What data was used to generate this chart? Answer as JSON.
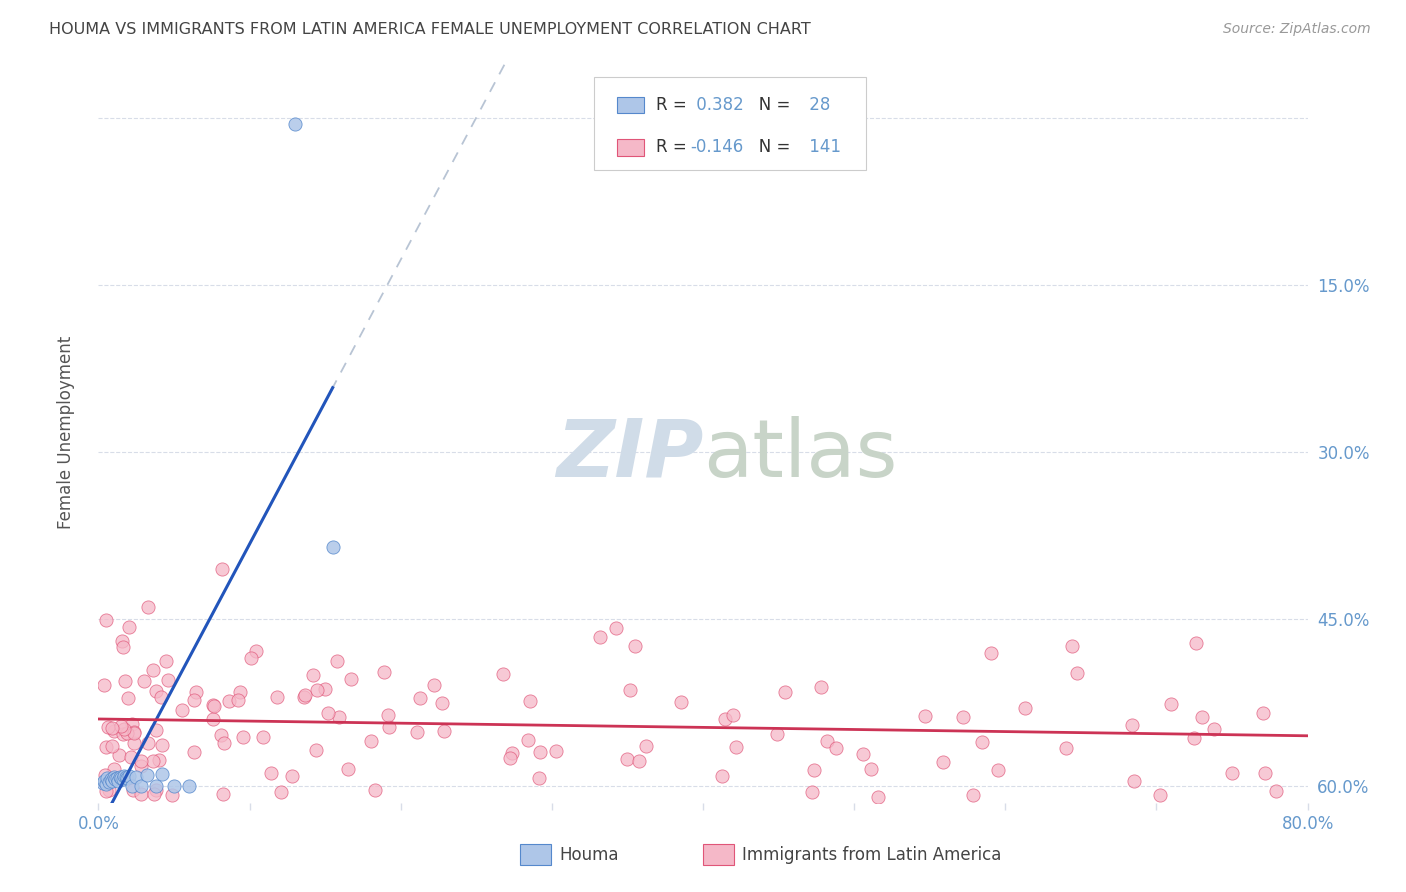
{
  "title": "HOUMA VS IMMIGRANTS FROM LATIN AMERICA FEMALE UNEMPLOYMENT CORRELATION CHART",
  "source": "Source: ZipAtlas.com",
  "ylabel": "Female Unemployment",
  "xlim": [
    0.0,
    0.8
  ],
  "ylim": [
    -0.015,
    0.65
  ],
  "x_tick_pos": [
    0.0,
    0.1,
    0.2,
    0.3,
    0.4,
    0.5,
    0.6,
    0.7,
    0.8
  ],
  "x_tick_labels": [
    "0.0%",
    "",
    "",
    "",
    "",
    "",
    "",
    "",
    "80.0%"
  ],
  "y_tick_pos": [
    0.0,
    0.15,
    0.3,
    0.45,
    0.6
  ],
  "right_y_tick_labels": [
    "60.0%",
    "45.0%",
    "30.0%",
    "15.0%",
    ""
  ],
  "houma_fill_color": "#aec6e8",
  "houma_edge_color": "#5588cc",
  "immigrants_fill_color": "#f5b8c8",
  "immigrants_edge_color": "#e05578",
  "houma_line_color": "#2255bb",
  "immigrants_line_color": "#cc3355",
  "dashed_line_color": "#b8c4d4",
  "grid_color": "#d8dde8",
  "watermark_color": "#d0dce8",
  "background_color": "#ffffff",
  "tick_color": "#6699cc",
  "legend_R_houma": "0.382",
  "legend_N_houma": "28",
  "legend_R_immigrants": "-0.146",
  "legend_N_immigrants": "141",
  "houma_x": [
    0.003,
    0.004,
    0.005,
    0.006,
    0.007,
    0.008,
    0.009,
    0.01,
    0.011,
    0.012,
    0.013,
    0.014,
    0.015,
    0.016,
    0.017,
    0.018,
    0.019,
    0.02,
    0.022,
    0.025,
    0.028,
    0.032,
    0.038,
    0.042,
    0.05,
    0.06,
    0.13,
    0.155
  ],
  "houma_y": [
    0.003,
    0.005,
    0.002,
    0.007,
    0.004,
    0.006,
    0.005,
    0.008,
    0.006,
    0.007,
    0.005,
    0.008,
    0.007,
    0.006,
    0.009,
    0.008,
    0.007,
    0.009,
    0.0,
    0.008,
    0.0,
    0.01,
    0.0,
    0.011,
    0.0,
    0.0,
    0.595,
    0.215
  ]
}
